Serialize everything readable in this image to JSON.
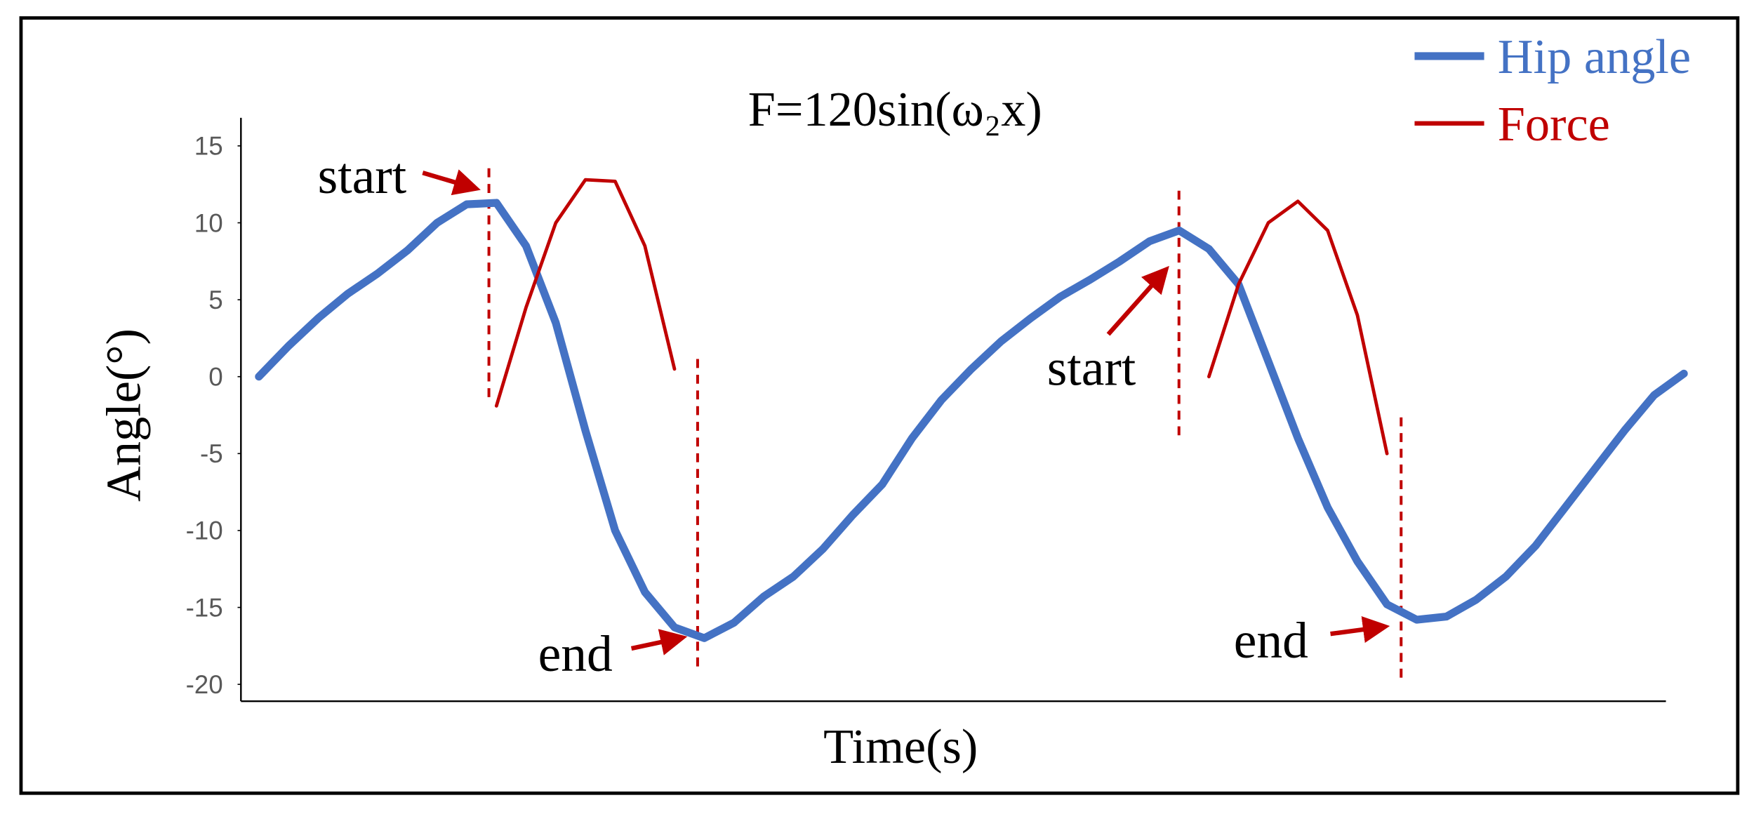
{
  "chart_data": {
    "type": "line",
    "title": "F=120sin(ω₂x)",
    "x_label": "Time(s)",
    "y_label": "Angle(°)",
    "categories": [
      null,
      null,
      null,
      null,
      null,
      null,
      null,
      null,
      null,
      null,
      null,
      null,
      null,
      null,
      null,
      null,
      null,
      null,
      null,
      null,
      null,
      null,
      null,
      null,
      null,
      null,
      null,
      null,
      null,
      null,
      null,
      null,
      null,
      null,
      null,
      null,
      null,
      null,
      null,
      null,
      null,
      null,
      null,
      null,
      null,
      null,
      null,
      null,
      null
    ],
    "series": [
      {
        "name": "Hip angle",
        "color": "#4472c4",
        "values": [
          0,
          2,
          3.8,
          5.4,
          6.7,
          8.2,
          10,
          11.2,
          11.3,
          8.5,
          3.5,
          -3.5,
          -10,
          -14,
          -16.3,
          -17,
          -16,
          -14.3,
          -13,
          -11.2,
          -9,
          -7,
          -4,
          -1.5,
          0.5,
          2.3,
          3.8,
          5.2,
          6.3,
          7.5,
          8.8,
          9.5,
          8.3,
          6,
          1,
          -4,
          -8.5,
          -12,
          -14.8,
          -15.8,
          -15.6,
          -14.5,
          -13,
          -11,
          -8.5,
          -6,
          -3.5,
          -1.2,
          0.2
        ]
      },
      {
        "name": "Force",
        "color": "#c00000",
        "values": [
          null,
          null,
          null,
          null,
          null,
          null,
          null,
          null,
          -1.9,
          4.5,
          10,
          12.8,
          12.7,
          8.5,
          0.5,
          null,
          null,
          null,
          null,
          null,
          null,
          null,
          null,
          null,
          null,
          null,
          null,
          null,
          null,
          null,
          null,
          null,
          0,
          6,
          10,
          11.4,
          9.5,
          4,
          -5,
          null,
          null,
          null,
          null,
          null,
          null,
          null,
          null,
          null,
          null
        ]
      }
    ],
    "annotations": [
      "start",
      "end",
      "start",
      "end"
    ],
    "ylim": [
      -21,
      17
    ],
    "yticks": [
      15,
      10,
      5,
      0,
      -5,
      -10,
      -15,
      -20
    ],
    "legend": "top-right"
  }
}
